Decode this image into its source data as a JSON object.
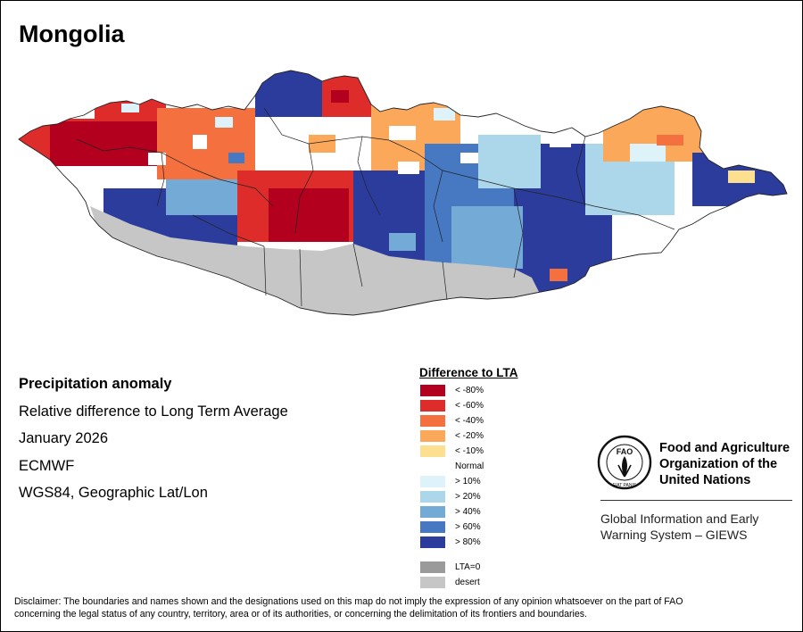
{
  "title": "Mongolia",
  "info": {
    "heading": "Precipitation anomaly",
    "subtitle": "Relative difference to Long Term Average",
    "period": "January 2026",
    "model": "ECMWF",
    "projection": "WGS84, Geographic Lat/Lon"
  },
  "legend": {
    "title": "Difference to LTA",
    "dry_classes": [
      {
        "label": "< -80%",
        "color": "#b2001e"
      },
      {
        "label": "< -60%",
        "color": "#dd2c2a"
      },
      {
        "label": "< -40%",
        "color": "#f4703f"
      },
      {
        "label": "< -20%",
        "color": "#fba85a"
      },
      {
        "label": "< -10%",
        "color": "#fde08f"
      }
    ],
    "normal_label": "Normal",
    "wet_classes": [
      {
        "label": "> 10%",
        "color": "#def2fa"
      },
      {
        "label": "> 20%",
        "color": "#acd7ea"
      },
      {
        "label": "> 40%",
        "color": "#74aad6"
      },
      {
        "label": "> 60%",
        "color": "#4679c2"
      },
      {
        "label": "> 80%",
        "color": "#2c3c9c"
      }
    ],
    "other_classes": [
      {
        "label": "LTA=0",
        "color": "#9a9a9a"
      },
      {
        "label": "desert",
        "color": "#c6c6c6"
      }
    ]
  },
  "organization": {
    "logo_text": "FAO",
    "logo_motto": "FIAT PANIS",
    "name_line1": "Food and Agriculture",
    "name_line2": "Organization of the",
    "name_line3": "United Nations",
    "system_line1": "Global Information and Early",
    "system_line2": "Warning System – GIEWS"
  },
  "disclaimer_line1": "Disclaimer: The boundaries and names shown and the designations used on this map do not imply the expression of any opinion whatsoever on the part of FAO",
  "disclaimer_line2": "concerning the legal status of any country, territory, area or of its authorities, or concerning the delimitation of its frontiers and boundaries."
}
